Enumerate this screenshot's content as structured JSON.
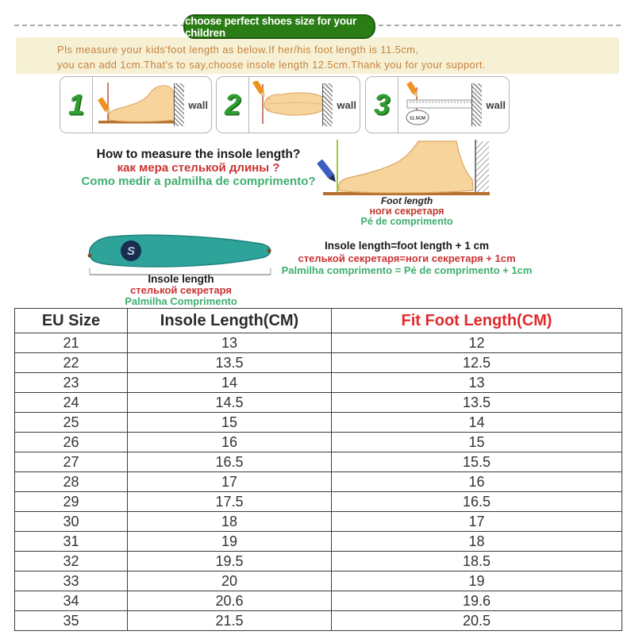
{
  "banner": {
    "label": "choose perfect shoes size for your children"
  },
  "notice": {
    "line1": "Pls measure your kids'foot length as below.If her/his foot length is 11.5cm,",
    "line2": "you can add 1cm.That's to say,choose insole length 12.5cm.Thank you for your support."
  },
  "steps": {
    "wall_label": "wall",
    "items": [
      {
        "number": "1"
      },
      {
        "number": "2"
      },
      {
        "number": "3",
        "ruler_label": "11.5CM"
      }
    ]
  },
  "how_to_measure": {
    "en": "How to measure the insole length?",
    "ru": "как мера  стелькой  длины ?",
    "pt": "Como medir a palmilha de comprimento?"
  },
  "foot_length_labels": {
    "en": "Foot length",
    "ru": "ноги  секретаря",
    "pt": "Pé de comprimento"
  },
  "insole_labels": {
    "en": "Insole length",
    "ru": "стелькой  секретаря",
    "pt": "Palmilha Comprimento"
  },
  "formula": {
    "en": "Insole length=foot length + 1 cm",
    "ru": "стелькой  секретаря=ноги  секретаря + 1cm",
    "pt": "Palmilha comprimento = Pé de comprimento + 1cm"
  },
  "size_table": {
    "headers": [
      "EU Size",
      "Insole Length(CM)",
      "Fit Foot Length(CM)"
    ],
    "rows": [
      [
        "21",
        "13",
        "12"
      ],
      [
        "22",
        "13.5",
        "12.5"
      ],
      [
        "23",
        "14",
        "13"
      ],
      [
        "24",
        "14.5",
        "13.5"
      ],
      [
        "25",
        "15",
        "14"
      ],
      [
        "26",
        "16",
        "15"
      ],
      [
        "27",
        "16.5",
        "15.5"
      ],
      [
        "28",
        "17",
        "16"
      ],
      [
        "29",
        "17.5",
        "16.5"
      ],
      [
        "30",
        "18",
        "17"
      ],
      [
        "31",
        "19",
        "18"
      ],
      [
        "32",
        "19.5",
        "18.5"
      ],
      [
        "33",
        "20",
        "19"
      ],
      [
        "34",
        "20.6",
        "19.6"
      ],
      [
        "35",
        "21.5",
        "20.5"
      ]
    ]
  },
  "colors": {
    "banner_green": "#2a7d15",
    "notice_beige": "#f6f1d5",
    "notice_orange": "#c7813c",
    "accent_red": "#cc3333",
    "accent_green": "#3fae6e",
    "step_number_green": "#2f9e31",
    "insole_teal": "#2ea39a",
    "table_header_red": "#e02a2a",
    "foot_tan": "#f6d49c",
    "pencil_orange": "#f0921e",
    "pencil_blue": "#3a5fc0",
    "ground_brown": "#b5702d"
  }
}
